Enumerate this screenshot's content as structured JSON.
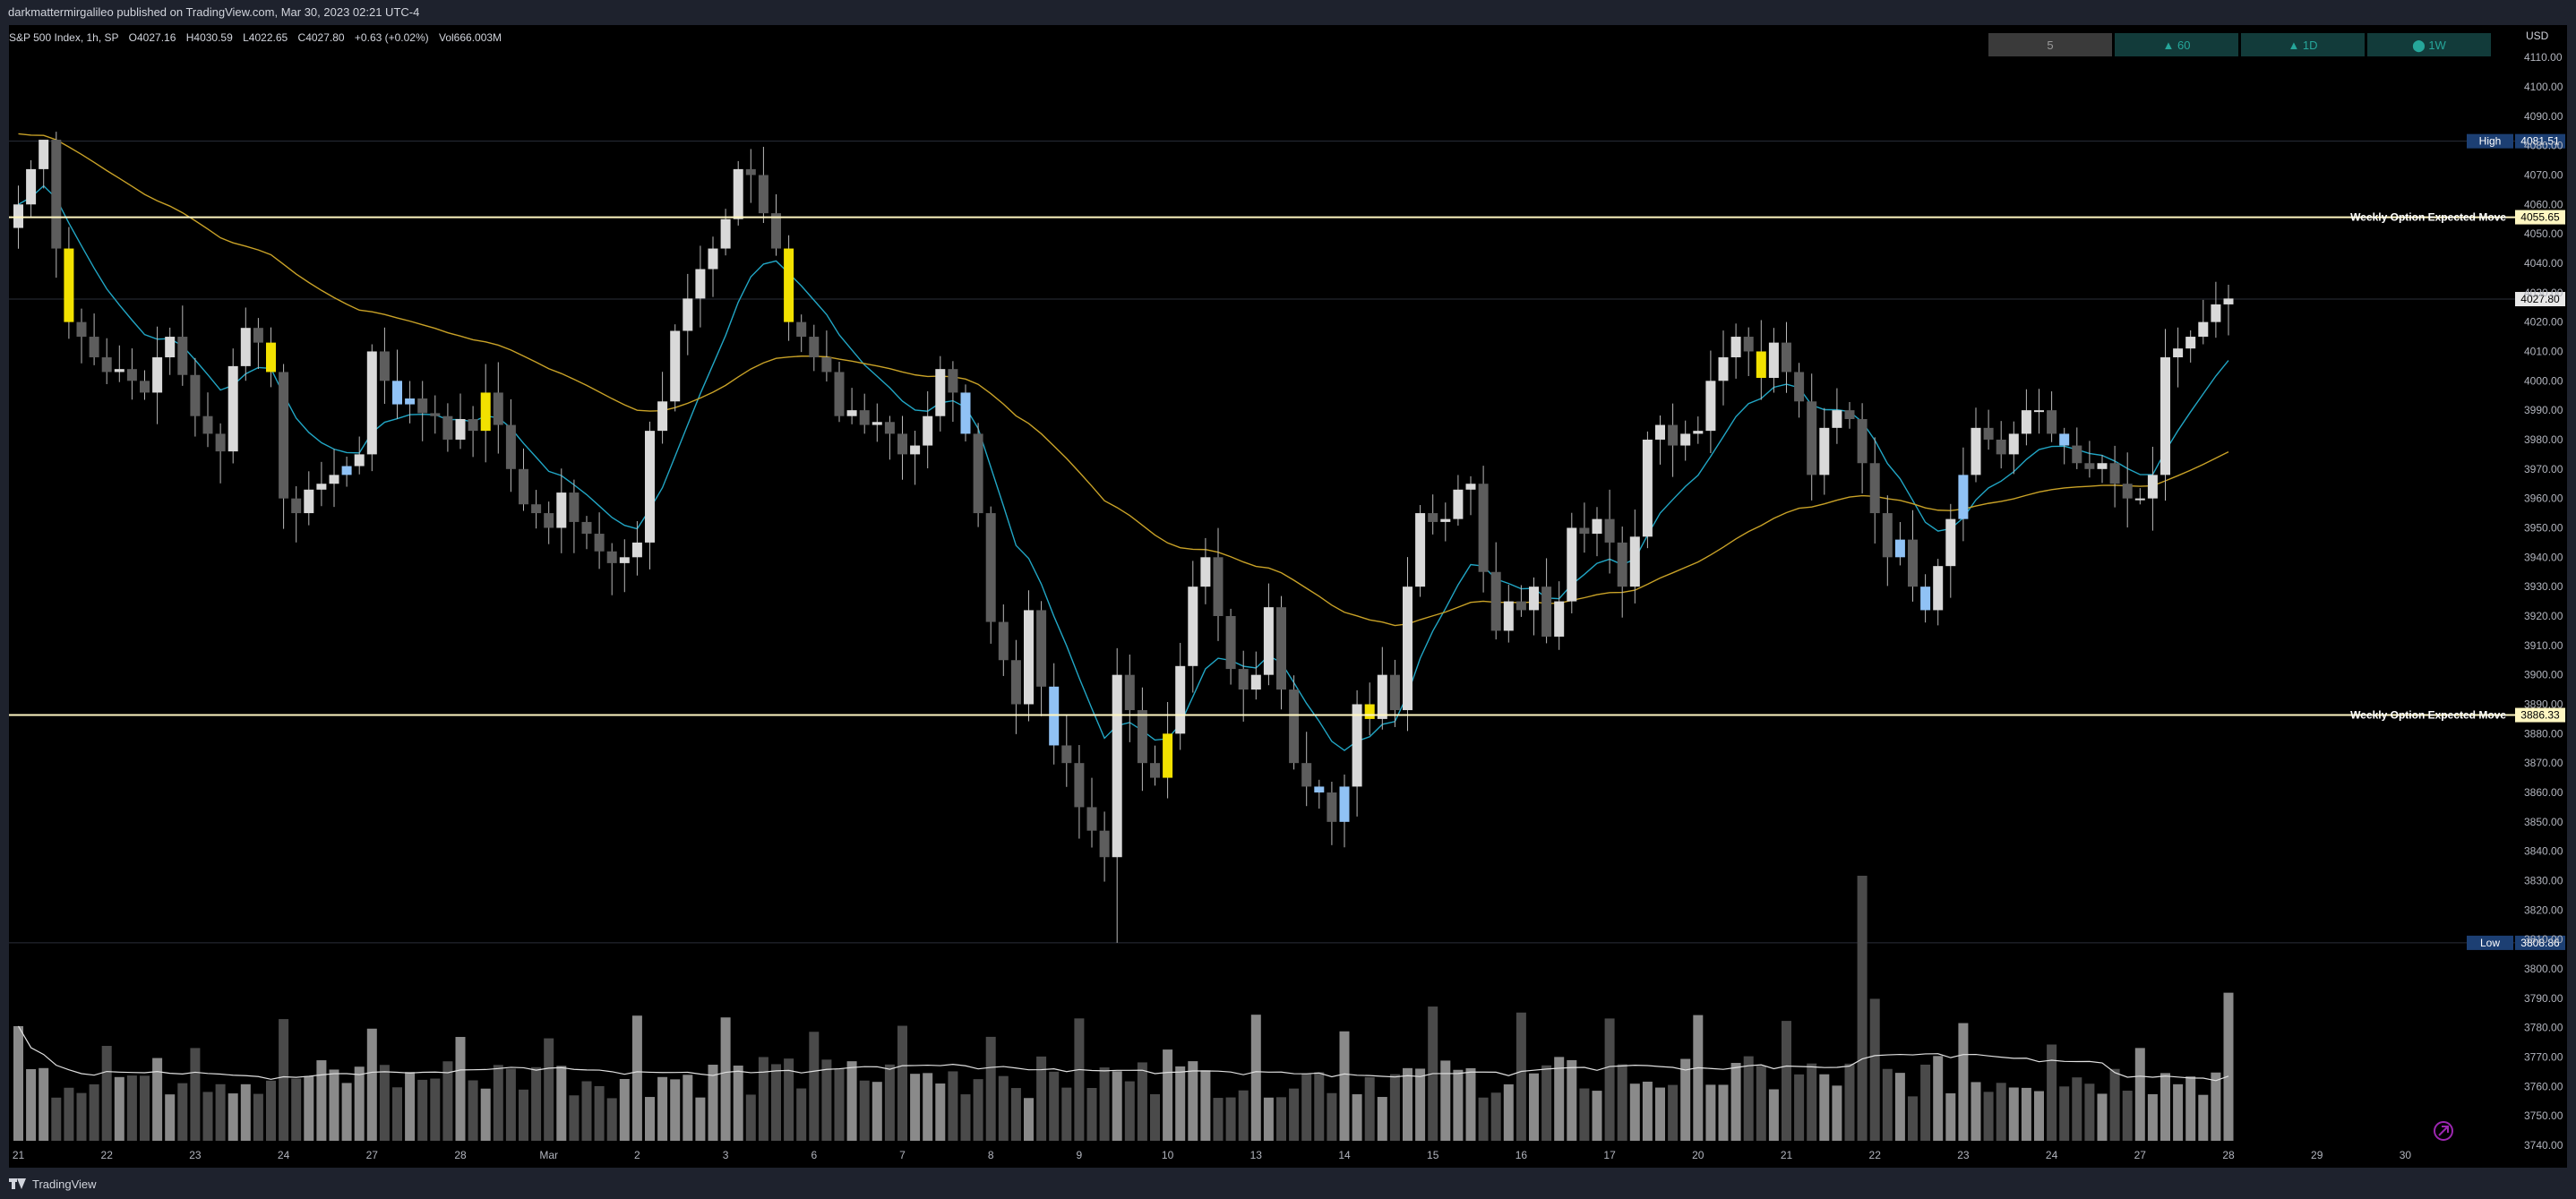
{
  "header": {
    "published_line": "darkmattermirgalileo published on TradingView.com, Mar 30, 2023 02:21 UTC-4"
  },
  "footer": {
    "brand": "TradingView"
  },
  "colors": {
    "background": "#000000",
    "candle_up": "#d9d9d9",
    "candle_down": "#5d5d5d",
    "candle_highlight_blue": "#90c2f5",
    "candle_highlight_yellow": "#f2e100",
    "ema_fast": "#21a6c5",
    "ema_slow": "#c9a227",
    "level_line": "#fff7c2",
    "high_badge": "#1c3f73",
    "price_badge": "#e8e8e8",
    "timeframe_button": "#123b3a",
    "timeframe_button_active": "#3a3a3a",
    "timeframe_text": "#26a69a"
  },
  "chart_data": {
    "type": "candlestick",
    "legend": {
      "symbol": "S&P 500 Index, 1h, SP",
      "open": "O4027.16",
      "high": "H4030.59",
      "low": "L4022.65",
      "close": "C4027.80",
      "change": "+0.63 (+0.02%)",
      "volume": "Vol666.003M"
    },
    "timeframe_buttons": [
      {
        "label": "5",
        "glyph": ""
      },
      {
        "label": "60",
        "glyph": "▲"
      },
      {
        "label": "1D",
        "glyph": "▲"
      },
      {
        "label": "1W",
        "glyph": "⬤"
      }
    ],
    "currency": "USD",
    "ylim": [
      3733,
      4121
    ],
    "y_ticks": [
      4110,
      4100,
      4090,
      4080,
      4070,
      4060,
      4050,
      4040,
      4030,
      4020,
      4010,
      4000,
      3990,
      3980,
      3970,
      3960,
      3950,
      3940,
      3930,
      3920,
      3910,
      3900,
      3890,
      3880,
      3870,
      3860,
      3850,
      3840,
      3830,
      3820,
      3810,
      3800,
      3790,
      3780,
      3770,
      3760,
      3750,
      3740
    ],
    "y_tick_labels": [
      "4110.00",
      "4100.00",
      "4090.00",
      "4080.00",
      "4070.00",
      "4060.00",
      "4050.00",
      "4040.00",
      "4030.00",
      "4020.00",
      "4010.00",
      "4000.00",
      "3990.00",
      "3980.00",
      "3970.00",
      "3960.00",
      "3950.00",
      "3940.00",
      "3930.00",
      "3920.00",
      "3910.00",
      "3900.00",
      "3890.00",
      "3880.00",
      "3870.00",
      "3860.00",
      "3850.00",
      "3840.00",
      "3830.00",
      "3820.00",
      "3810.00",
      "3800.00",
      "3790.00",
      "3780.00",
      "3770.00",
      "3760.00",
      "3750.00",
      "3740.00"
    ],
    "x_ticks": [
      "21",
      "22",
      "23",
      "24",
      "27",
      "28",
      "Mar",
      "2",
      "3",
      "6",
      "7",
      "8",
      "9",
      "10",
      "13",
      "14",
      "15",
      "16",
      "17",
      "20",
      "21",
      "22",
      "23",
      "24",
      "27",
      "28",
      "29",
      "30"
    ],
    "candles_per_day": 7,
    "closes": [
      4060,
      4072,
      4082,
      4045,
      4020,
      4015,
      4008,
      4003,
      4004,
      4000,
      3996,
      4008,
      4015,
      4002,
      3988,
      3982,
      3976,
      4005,
      4018,
      4013,
      4003,
      3960,
      3955,
      3963,
      3965,
      3968,
      3971,
      3975,
      4010,
      4000,
      3992,
      3994,
      3989,
      3988,
      3980,
      3987,
      3983,
      3996,
      3985,
      3970,
      3958,
      3955,
      3950,
      3962,
      3952,
      3948,
      3942,
      3938,
      3940,
      3945,
      3983,
      3993,
      4017,
      4028,
      4038,
      4045,
      4055,
      4072,
      4070,
      4057,
      4045,
      4020,
      4015,
      4008,
      4003,
      3988,
      3990,
      3985,
      3986,
      3982,
      3975,
      3978,
      3988,
      4004,
      3996,
      3982,
      3955,
      3918,
      3905,
      3890,
      3922,
      3896,
      3876,
      3870,
      3855,
      3847,
      3838,
      3900,
      3888,
      3870,
      3865,
      3880,
      3903,
      3930,
      3940,
      3920,
      3902,
      3895,
      3900,
      3923,
      3895,
      3870,
      3862,
      3860,
      3850,
      3862,
      3890,
      3885,
      3900,
      3888,
      3930,
      3955,
      3952,
      3953,
      3963,
      3965,
      3935,
      3915,
      3925,
      3922,
      3930,
      3913,
      3925,
      3950,
      3948,
      3953,
      3945,
      3930,
      3947,
      3980,
      3985,
      3978,
      3982,
      3983,
      4000,
      4008,
      4015,
      4010,
      4001,
      4013,
      4003,
      3993,
      3968,
      3984,
      3990,
      3987,
      3972,
      3955,
      3940,
      3946,
      3930,
      3922,
      3937,
      3953,
      3968,
      3984,
      3980,
      3975,
      3982,
      3990,
      3990,
      3982,
      3978,
      3972,
      3970,
      3972,
      3965,
      3960,
      3960,
      3968,
      4008,
      4011,
      4015,
      4020,
      4026,
      4028
    ],
    "series": [
      {
        "name": "",
        "type": "ema",
        "period": 9,
        "color": "#21a6c5"
      },
      {
        "name": "",
        "type": "ema",
        "period": 50,
        "color": "#c9a227"
      }
    ],
    "volume_ymax": 1120,
    "volume_peak_index": 146,
    "levels": [
      {
        "label": "High",
        "value": 4081.51,
        "value_label": "4081.51",
        "kind": "high"
      },
      {
        "label": "Weekly Option Expected Move",
        "value": 4055.65,
        "value_label": "4055.65",
        "kind": "expected-move"
      },
      {
        "label": "",
        "value": 4027.8,
        "value_label": "4027.80",
        "kind": "last-price"
      },
      {
        "label": "Weekly Option Expected Move",
        "value": 3886.33,
        "value_label": "3886.33",
        "kind": "expected-move"
      },
      {
        "label": "Low",
        "value": 3808.86,
        "value_label": "3808.86",
        "kind": "low"
      }
    ]
  }
}
